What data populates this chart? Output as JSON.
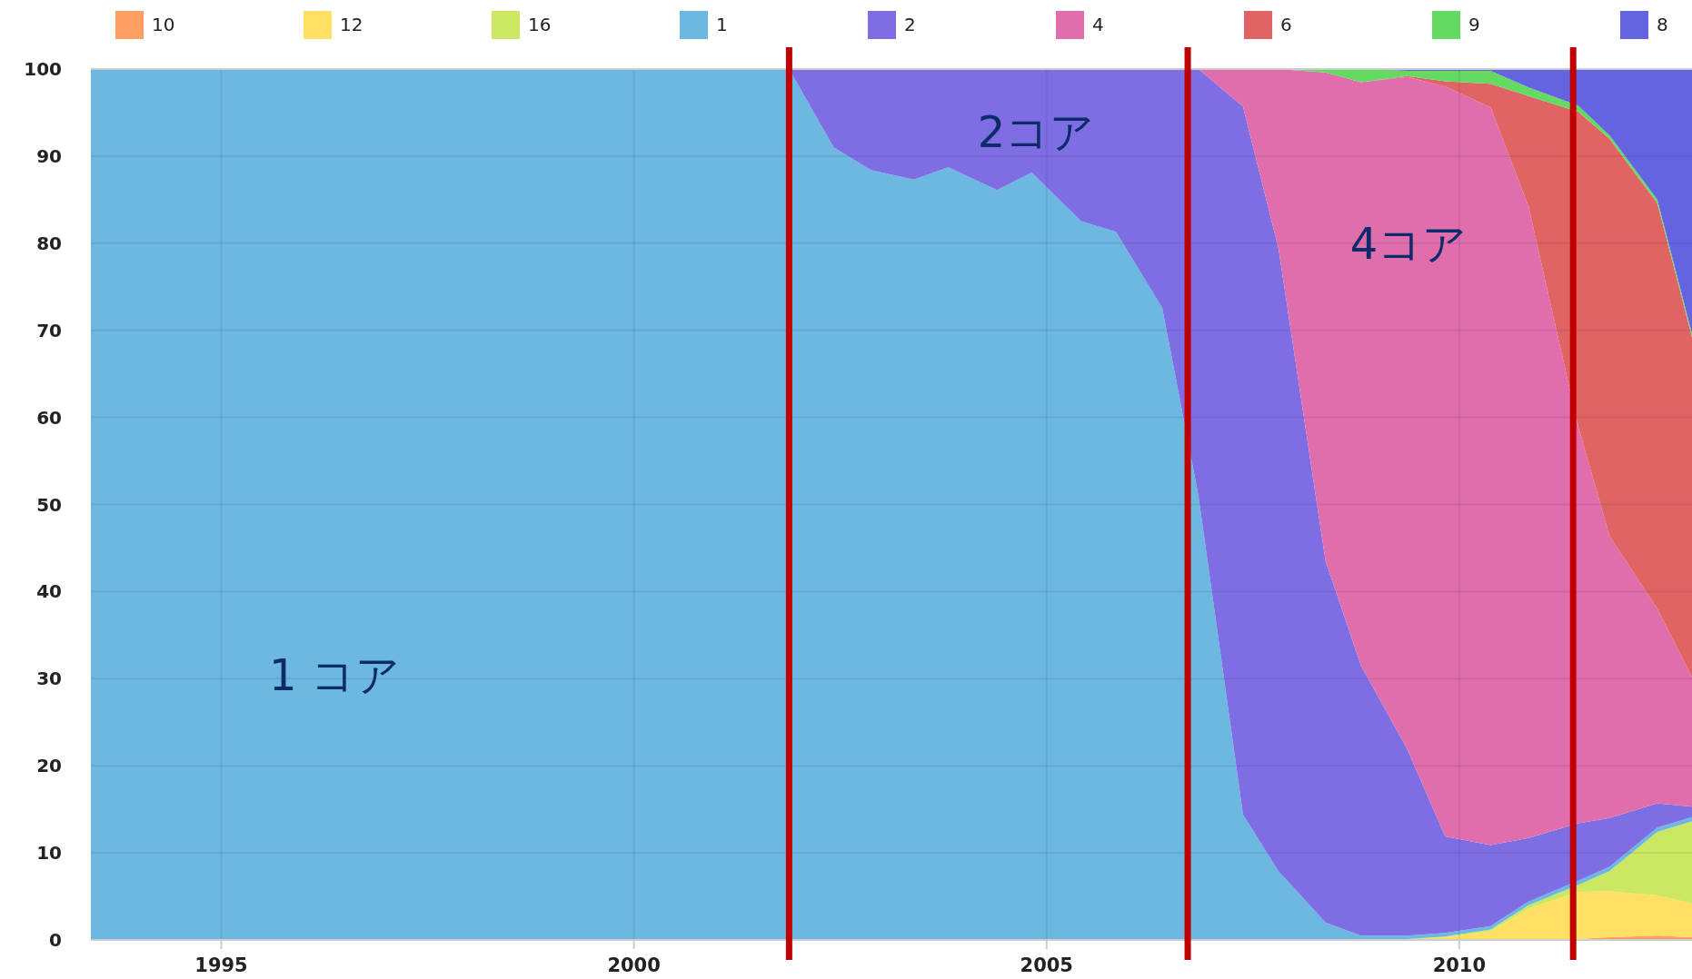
{
  "chart_data": {
    "type": "area",
    "stacked": true,
    "grid": true,
    "legend": "top",
    "x": [
      1993.42,
      2001.88,
      2002.42,
      2002.87,
      2003.39,
      2003.81,
      2004.4,
      2004.82,
      2005.42,
      2005.84,
      2006.4,
      2006.84,
      2007.38,
      2007.81,
      2008.38,
      2008.81,
      2009.37,
      2009.83,
      2010.38,
      2010.84,
      2011.44,
      2011.82,
      2012.4,
      2012.82
    ],
    "xlim": [
      1993.42,
      2012.82
    ],
    "xticks": [
      1995,
      2000,
      2005,
      2010
    ],
    "ylim": [
      0,
      100
    ],
    "yticks": [
      0,
      10,
      20,
      30,
      40,
      50,
      60,
      70,
      80,
      90,
      100
    ],
    "series": [
      {
        "name": "10",
        "color": "#ff9e63",
        "values": [
          0,
          0,
          0,
          0,
          0,
          0,
          0,
          0,
          0,
          0,
          0,
          0,
          0,
          0,
          0,
          0,
          0,
          0,
          0,
          0,
          0.1,
          0.3,
          0.5,
          0.3
        ]
      },
      {
        "name": "12",
        "color": "#ffe063",
        "values": [
          0,
          0,
          0,
          0,
          0,
          0,
          0,
          0,
          0,
          0,
          0,
          0,
          0,
          0,
          0,
          0,
          0.1,
          0.3,
          1.0,
          3.6,
          5.4,
          5.3,
          4.6,
          3.9
        ]
      },
      {
        "name": "16",
        "color": "#cce863",
        "values": [
          0,
          0,
          0,
          0,
          0,
          0,
          0,
          0,
          0,
          0,
          0,
          0,
          0,
          0,
          0,
          0,
          0,
          0.1,
          0.2,
          0.4,
          0.8,
          2.3,
          7.3,
          9.4
        ]
      },
      {
        "name": "1",
        "color": "#6cb8e0",
        "values": [
          100,
          100,
          91.0,
          88.4,
          87.3,
          88.7,
          86.1,
          88.1,
          82.5,
          81.3,
          72.6,
          51,
          14.4,
          7.9,
          2.0,
          0.5,
          0.4,
          0.4,
          0.4,
          0.4,
          0.5,
          0.5,
          0.5,
          0.5
        ]
      },
      {
        "name": "2",
        "color": "#7f6ee3",
        "values": [
          0,
          0,
          9.0,
          11.6,
          12.7,
          11.3,
          13.9,
          11.9,
          17.5,
          18.7,
          27.4,
          49,
          81.3,
          71.5,
          41.5,
          31.0,
          21.4,
          11.1,
          9.3,
          7.3,
          6.6,
          5.6,
          2.8,
          1.2
        ]
      },
      {
        "name": "4",
        "color": "#e06ead",
        "values": [
          0,
          0,
          0,
          0,
          0,
          0,
          0,
          0,
          0,
          0,
          0,
          0,
          4.3,
          20.6,
          56.1,
          67.0,
          77.2,
          86.1,
          84.7,
          72.5,
          45.6,
          32.4,
          22.3,
          14.9
        ]
      },
      {
        "name": "6",
        "color": "#e06464",
        "values": [
          0,
          0,
          0,
          0,
          0,
          0,
          0,
          0,
          0,
          0,
          0,
          0,
          0,
          0,
          0,
          0,
          0.1,
          0.6,
          2.7,
          12.7,
          36.1,
          45.6,
          46.6,
          39.0
        ]
      },
      {
        "name": "9",
        "color": "#63db63",
        "values": [
          0,
          0,
          0,
          0,
          0,
          0,
          0,
          0,
          0,
          0,
          0,
          0,
          0,
          0,
          0.4,
          1.5,
          0.6,
          1.2,
          1.5,
          1.0,
          0.7,
          0.4,
          0.4,
          0.4
        ]
      },
      {
        "name": "8",
        "color": "#6464e0",
        "values": [
          0,
          0,
          0,
          0,
          0,
          0,
          0,
          0,
          0,
          0,
          0,
          0,
          0,
          0,
          0,
          0,
          0.2,
          0.2,
          0.2,
          2.1,
          4.2,
          7.6,
          15.0,
          30.4
        ]
      }
    ],
    "ref_lines": [
      {
        "axis": "x",
        "value": 2001.88,
        "color": "#c00000"
      },
      {
        "axis": "x",
        "value": 2006.71,
        "color": "#c00000"
      },
      {
        "axis": "x",
        "value": 2011.38,
        "color": "#c00000"
      }
    ],
    "annotations": [
      "1 コア",
      "2コア",
      "4コア"
    ]
  }
}
